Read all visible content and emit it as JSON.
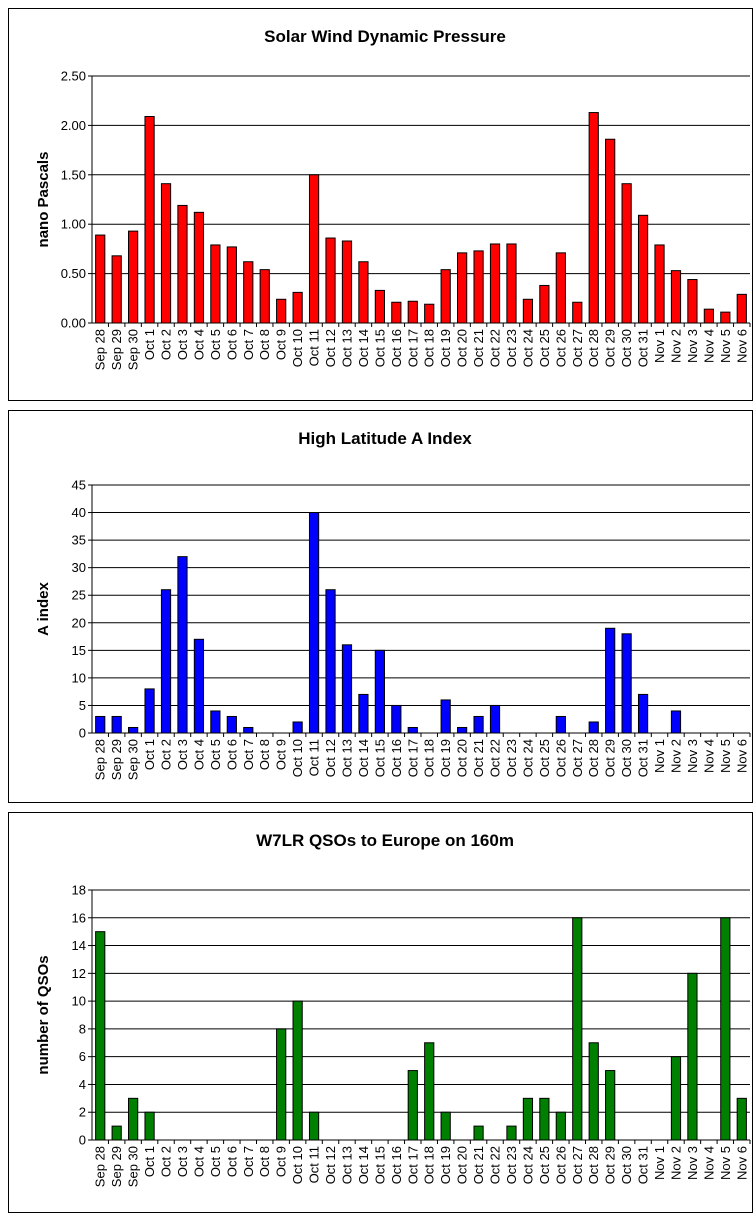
{
  "chart_data": [
    {
      "type": "bar",
      "title": "Solar Wind Dynamic Pressure",
      "y_label": "nano Pascals",
      "color": "#ff0000",
      "grid": true,
      "categories": [
        "Sep 28",
        "Sep 29",
        "Sep 30",
        "Oct 1",
        "Oct 2",
        "Oct 3",
        "Oct 4",
        "Oct 5",
        "Oct 6",
        "Oct 7",
        "Oct 8",
        "Oct 9",
        "Oct 10",
        "Oct 11",
        "Oct 12",
        "Oct 13",
        "Oct 14",
        "Oct 15",
        "Oct 16",
        "Oct 17",
        "Oct 18",
        "Oct 19",
        "Oct 20",
        "Oct 21",
        "Oct 22",
        "Oct 23",
        "Oct 24",
        "Oct 25",
        "Oct 26",
        "Oct 27",
        "Oct 28",
        "Oct 29",
        "Oct 30",
        "Oct 31",
        "Nov 1",
        "Nov 2",
        "Nov 3",
        "Nov 4",
        "Nov 5",
        "Nov 6"
      ],
      "values": [
        0.89,
        0.68,
        0.93,
        2.09,
        1.41,
        1.19,
        1.12,
        0.79,
        0.77,
        0.62,
        0.54,
        0.24,
        0.31,
        1.5,
        0.86,
        0.83,
        0.62,
        0.33,
        0.21,
        0.22,
        0.19,
        0.54,
        0.71,
        0.73,
        0.8,
        0.8,
        0.24,
        0.38,
        0.71,
        0.21,
        2.13,
        1.86,
        1.41,
        1.09,
        0.79,
        0.53,
        0.44,
        0.14,
        0.11,
        0.29
      ],
      "ylim": [
        0,
        2.5
      ],
      "yticks": [
        {
          "value": 0,
          "label": "0.00"
        },
        {
          "value": 0.5,
          "label": "0.50"
        },
        {
          "value": 1,
          "label": "1.00"
        },
        {
          "value": 1.5,
          "label": "1.50"
        },
        {
          "value": 2,
          "label": "2.00"
        },
        {
          "value": 2.5,
          "label": "2.50"
        }
      ]
    },
    {
      "type": "bar",
      "title": "High Latitude A Index",
      "y_label": "A index",
      "color": "#0000ff",
      "grid": true,
      "categories": [
        "Sep 28",
        "Sep 29",
        "Sep 30",
        "Oct 1",
        "Oct 2",
        "Oct 3",
        "Oct 4",
        "Oct 5",
        "Oct 6",
        "Oct 7",
        "Oct 8",
        "Oct 9",
        "Oct 10",
        "Oct 11",
        "Oct 12",
        "Oct 13",
        "Oct 14",
        "Oct 15",
        "Oct 16",
        "Oct 17",
        "Oct 18",
        "Oct 19",
        "Oct 20",
        "Oct 21",
        "Oct 22",
        "Oct 23",
        "Oct 24",
        "Oct 25",
        "Oct 26",
        "Oct 27",
        "Oct 28",
        "Oct 29",
        "Oct 30",
        "Oct 31",
        "Nov 1",
        "Nov 2",
        "Nov 3",
        "Nov 4",
        "Nov 5",
        "Nov 6"
      ],
      "values": [
        3,
        3,
        1,
        8,
        26,
        32,
        17,
        4,
        3,
        1,
        0,
        0,
        2,
        40,
        26,
        16,
        7,
        15,
        5,
        1,
        0,
        6,
        1,
        3,
        5,
        0,
        0,
        0,
        3,
        0,
        2,
        19,
        18,
        7,
        0,
        4,
        0,
        0,
        0,
        0
      ],
      "ylim": [
        0,
        45
      ],
      "yticks": [
        0,
        5,
        10,
        15,
        20,
        25,
        30,
        35,
        40,
        45
      ]
    },
    {
      "type": "bar",
      "title": "W7LR QSOs to Europe on 160m",
      "y_label": "number of QSOs",
      "color": "#008000",
      "grid": true,
      "categories": [
        "Sep 28",
        "Sep 29",
        "Sep 30",
        "Oct 1",
        "Oct 2",
        "Oct 3",
        "Oct 4",
        "Oct 5",
        "Oct 6",
        "Oct 7",
        "Oct 8",
        "Oct 9",
        "Oct 10",
        "Oct 11",
        "Oct 12",
        "Oct 13",
        "Oct 14",
        "Oct 15",
        "Oct 16",
        "Oct 17",
        "Oct 18",
        "Oct 19",
        "Oct 20",
        "Oct 21",
        "Oct 22",
        "Oct 23",
        "Oct 24",
        "Oct 25",
        "Oct 26",
        "Oct 27",
        "Oct 28",
        "Oct 29",
        "Oct 30",
        "Oct 31",
        "Nov 1",
        "Nov 2",
        "Nov 3",
        "Nov 4",
        "Nov 5",
        "Nov 6"
      ],
      "values": [
        15,
        1,
        3,
        2,
        0,
        0,
        0,
        0,
        0,
        0,
        0,
        8,
        10,
        2,
        0,
        0,
        0,
        0,
        0,
        5,
        7,
        2,
        0,
        1,
        0,
        1,
        3,
        3,
        2,
        16,
        7,
        5,
        0,
        0,
        0,
        6,
        12,
        0,
        16,
        3
      ],
      "ylim": [
        0,
        18
      ],
      "yticks": [
        0,
        2,
        4,
        6,
        8,
        10,
        12,
        14,
        16,
        18
      ]
    }
  ]
}
